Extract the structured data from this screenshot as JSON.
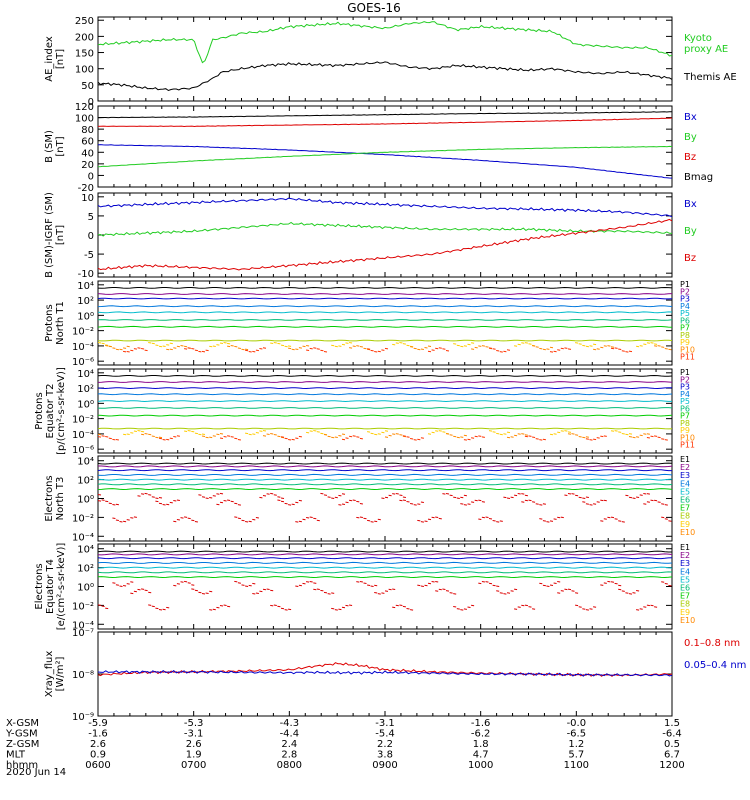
{
  "title": "GOES-16",
  "date_label": "2020 Jun 14",
  "colors": {
    "black": "#000000",
    "green": "#22cc22",
    "red": "#dd0000",
    "blue": "#0000cc",
    "channels": [
      "#000000",
      "#880088",
      "#0000cc",
      "#0077dd",
      "#00bbcc",
      "#00bb77",
      "#00cc00",
      "#aacc00",
      "#ffcc00",
      "#ff8800",
      "#ff3300",
      "#cc0000"
    ]
  },
  "ephemeris": {
    "rows": [
      {
        "label": "X-GSM",
        "values": [
          "-5.9",
          "-5.3",
          "-4.3",
          "-3.1",
          "-1.6",
          "-0.0",
          "1.5"
        ]
      },
      {
        "label": "Y-GSM",
        "values": [
          "-1.6",
          "-3.1",
          "-4.4",
          "-5.4",
          "-6.2",
          "-6.5",
          "-6.4"
        ]
      },
      {
        "label": "Z-GSM",
        "values": [
          "2.6",
          "2.6",
          "2.4",
          "2.2",
          "1.8",
          "1.2",
          "0.5"
        ]
      },
      {
        "label": "MLT",
        "values": [
          "0.9",
          "1.9",
          "2.8",
          "3.8",
          "4.7",
          "5.7",
          "6.7"
        ]
      },
      {
        "label": "hhmm",
        "values": [
          "0600",
          "0700",
          "0800",
          "0900",
          "1000",
          "1100",
          "1200"
        ]
      }
    ]
  },
  "chart_data": [
    {
      "type": "line",
      "panel": "ae",
      "ylabel": "AE_index\n[nT]",
      "yticks": [
        "0",
        "50",
        "100",
        "150",
        "200",
        "250"
      ],
      "ylim": [
        0,
        260
      ],
      "x": [
        6,
        6.25,
        6.5,
        6.75,
        7,
        7.1,
        7.2,
        7.3,
        7.5,
        7.75,
        8,
        8.5,
        9,
        9.25,
        9.5,
        9.75,
        10,
        10.25,
        10.5,
        10.75,
        11,
        11.25,
        11.5,
        11.75,
        12
      ],
      "series": [
        {
          "name": "Kyoto\nproxy AE",
          "color": "#22cc22",
          "values": [
            175,
            180,
            185,
            190,
            190,
            110,
            190,
            195,
            210,
            215,
            230,
            240,
            225,
            240,
            245,
            220,
            230,
            225,
            220,
            215,
            175,
            170,
            165,
            165,
            140
          ]
        },
        {
          "name": "Themis AE",
          "color": "#000000",
          "values": [
            55,
            50,
            40,
            35,
            40,
            55,
            70,
            90,
            100,
            110,
            115,
            110,
            120,
            105,
            100,
            110,
            105,
            100,
            95,
            100,
            90,
            85,
            90,
            80,
            70
          ]
        }
      ]
    },
    {
      "type": "line",
      "panel": "b",
      "ylabel": "B (SM)\n[nT]",
      "yticks": [
        "-20",
        "0",
        "20",
        "40",
        "60",
        "80",
        "100",
        "120"
      ],
      "ylim": [
        -20,
        120
      ],
      "x": [
        6,
        7,
        8,
        9,
        10,
        11,
        12
      ],
      "series": [
        {
          "name": "Bx",
          "color": "#0000cc",
          "values": [
            53,
            50,
            44,
            36,
            26,
            14,
            -5
          ]
        },
        {
          "name": "By",
          "color": "#22cc22",
          "values": [
            15,
            25,
            33,
            40,
            45,
            48,
            50
          ]
        },
        {
          "name": "Bz",
          "color": "#dd0000",
          "values": [
            85,
            85,
            87,
            89,
            92,
            95,
            99
          ]
        },
        {
          "name": "Bmag",
          "color": "#000000",
          "values": [
            100,
            101,
            103,
            105,
            107,
            108,
            110
          ]
        }
      ]
    },
    {
      "type": "line",
      "panel": "dB",
      "ylabel": "B (SM)-IGRF (SM)\n[nT]",
      "yticks": [
        "-10",
        "-5",
        "0",
        "5",
        "10"
      ],
      "ylim": [
        -11,
        11
      ],
      "x": [
        6,
        6.5,
        7,
        7.5,
        8,
        8.5,
        9,
        9.5,
        10,
        10.5,
        11,
        11.5,
        12
      ],
      "series": [
        {
          "name": "Bx",
          "color": "#0000cc",
          "values": [
            7.5,
            8,
            8.5,
            9,
            9.5,
            8.5,
            8,
            7.5,
            7,
            6.8,
            6.5,
            6,
            5
          ]
        },
        {
          "name": "By",
          "color": "#22cc22",
          "values": [
            0,
            0.5,
            1,
            2,
            3,
            2.5,
            2,
            1.5,
            1.5,
            1.5,
            1,
            1,
            0.5
          ]
        },
        {
          "name": "Bz",
          "color": "#dd0000",
          "values": [
            -9,
            -8,
            -8.5,
            -9,
            -8,
            -7,
            -6,
            -5,
            -3,
            -1,
            0.5,
            2,
            4
          ]
        }
      ]
    },
    {
      "type": "line",
      "panel": "p1",
      "ylabel": "Protons\nNorth T1",
      "yticks": [
        "10⁻⁶",
        "10⁻⁴",
        "10⁻²",
        "10⁰",
        "10²",
        "10⁴"
      ],
      "ylim": [
        -6.5,
        4.5
      ],
      "channel_labels": [
        "P1",
        "P2",
        "P3",
        "P4",
        "P5",
        "P6",
        "P7",
        "P8",
        "P9",
        "P10",
        "P11"
      ],
      "levels": [
        3.6,
        2.8,
        2.2,
        1.2,
        0.4,
        -0.6,
        -1.5,
        -3.3,
        -3.8,
        -4.2,
        -4.5
      ]
    },
    {
      "type": "line",
      "panel": "p2",
      "ylabel": "Protons\nEquator T2\n[p/(cm²-s-sr-keV)]",
      "yticks": [
        "10⁻⁶",
        "10⁻⁴",
        "10⁻²",
        "10⁰",
        "10²",
        "10⁴"
      ],
      "ylim": [
        -6.5,
        4.5
      ],
      "channel_labels": [
        "P1",
        "P2",
        "P3",
        "P4",
        "P5",
        "P6",
        "P7",
        "P8",
        "P9",
        "P10",
        "P11"
      ],
      "levels": [
        3.6,
        2.8,
        2.0,
        1.2,
        0.3,
        -0.6,
        -1.6,
        -3.3,
        -3.8,
        -4.2,
        -4.5
      ]
    },
    {
      "type": "line",
      "panel": "e1",
      "ylabel": "Electrons\nNorth T3",
      "yticks": [
        "10⁻⁴",
        "10⁻²",
        "10⁰",
        "10²",
        "10⁴"
      ],
      "ylim": [
        -4.5,
        4.5
      ],
      "channel_labels": [
        "E1",
        "E2",
        "E3",
        "E4",
        "E5",
        "E6",
        "E7",
        "E8",
        "E9",
        "E10"
      ],
      "levels": [
        3.7,
        3.4,
        3.0,
        2.5,
        2.0,
        1.5,
        1.0,
        0.3,
        -0.4,
        -2.2
      ]
    },
    {
      "type": "line",
      "panel": "e2",
      "ylabel": "Electrons\nEquator T4\n[e/(cm²-s-sr-keV)]",
      "yticks": [
        "10⁻⁴",
        "10⁻²",
        "10⁰",
        "10²",
        "10⁴"
      ],
      "ylim": [
        -4.5,
        4.5
      ],
      "channel_labels": [
        "E1",
        "E2",
        "E3",
        "E4",
        "E5",
        "E6",
        "E7",
        "E8",
        "E9",
        "E10"
      ],
      "levels": [
        3.7,
        3.4,
        3.0,
        2.5,
        2.0,
        1.5,
        1.0,
        0.3,
        -0.5,
        -2.2
      ]
    },
    {
      "type": "line",
      "panel": "xray",
      "ylabel": "Xray_flux\n[W/m²]",
      "yticks": [
        "10⁻⁹",
        "10⁻⁸",
        "10⁻⁷"
      ],
      "ylim": [
        -9,
        -7
      ],
      "x": [
        6,
        6.5,
        7,
        7.5,
        8,
        8.25,
        8.5,
        8.75,
        9,
        9.5,
        10,
        10.5,
        11,
        11.5,
        12
      ],
      "series": [
        {
          "name": "0.1–0.8 nm",
          "color": "#dd0000",
          "values": [
            -8.02,
            -7.96,
            -7.95,
            -7.93,
            -7.9,
            -7.82,
            -7.75,
            -7.8,
            -7.9,
            -7.95,
            -7.98,
            -8.0,
            -8.02,
            -8.03,
            -8.0
          ]
        },
        {
          "name": "0.05–0.4 nm",
          "color": "#0000cc",
          "values": [
            -7.95,
            -7.95,
            -7.95,
            -7.96,
            -7.97,
            -7.96,
            -7.97,
            -7.97,
            -7.96,
            -7.98,
            -8.0,
            -8.0,
            -8.02,
            -8.02,
            -8.03
          ]
        }
      ]
    }
  ]
}
